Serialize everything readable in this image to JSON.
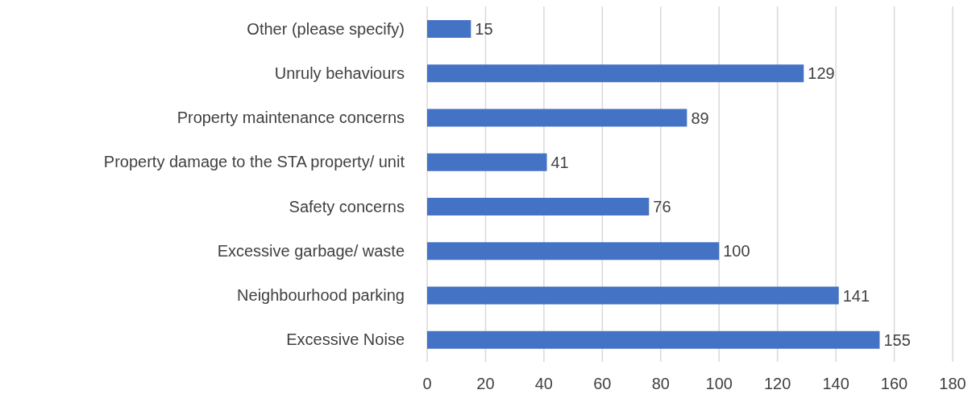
{
  "chart_data": {
    "type": "bar",
    "orientation": "horizontal",
    "categories": [
      "Other (please specify)",
      "Unruly behaviours",
      "Property maintenance concerns",
      "Property damage to the STA property/ unit",
      "Safety concerns",
      "Excessive garbage/ waste",
      "Neighbourhood parking",
      "Excessive Noise"
    ],
    "values": [
      15,
      129,
      89,
      41,
      76,
      100,
      141,
      155
    ],
    "color": "#4472c4",
    "xlim": [
      0,
      180
    ],
    "xticks": [
      0,
      20,
      40,
      60,
      80,
      100,
      120,
      140,
      160,
      180
    ],
    "grid": "x",
    "data_labels": true
  }
}
